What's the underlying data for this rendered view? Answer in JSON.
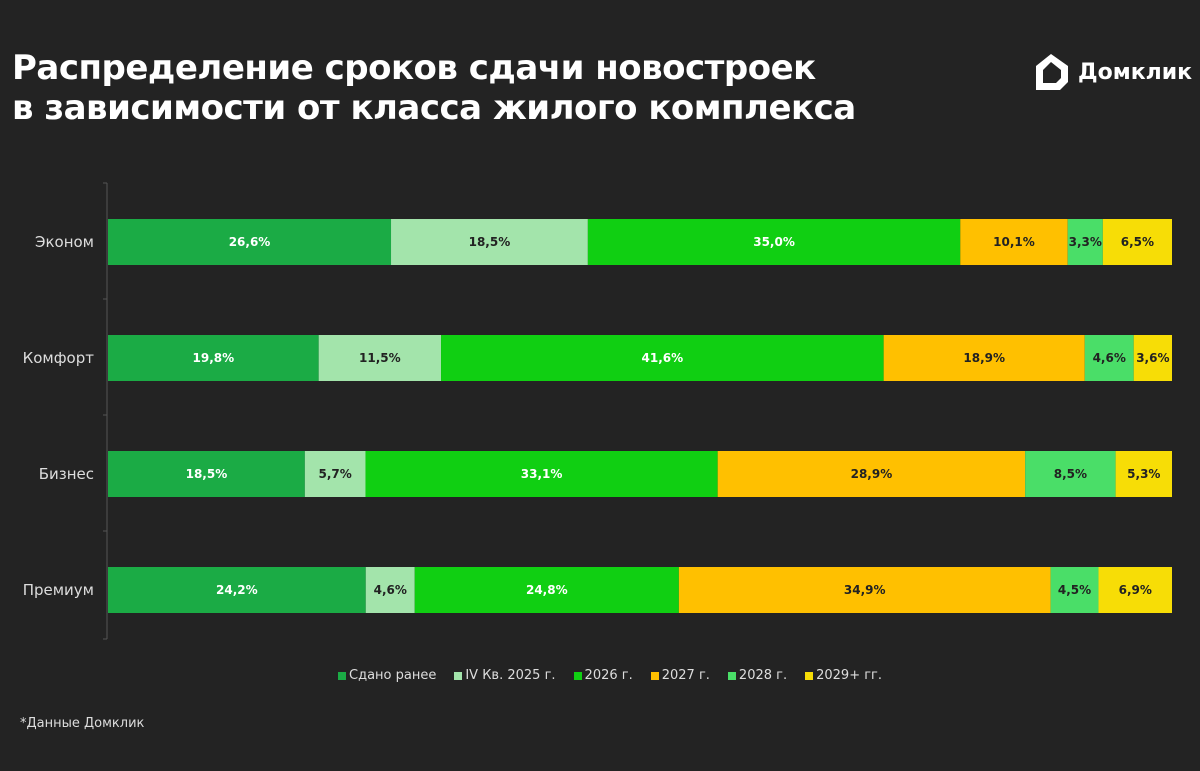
{
  "title_lines": [
    "Распределение сроков сдачи новостроек",
    "в зависимости от класса жилого комплекса"
  ],
  "logo_text": "Домклик",
  "footnote": "*Данные Домклик",
  "chart_data": {
    "type": "bar",
    "orientation": "horizontal",
    "stacked": true,
    "categories": [
      "Эконом",
      "Комфорт",
      "Бизнес",
      "Премиум"
    ],
    "series": [
      {
        "name": "Сдано ранее",
        "color": "#1bab45",
        "label_color": "#ffffff",
        "values": [
          26.6,
          19.8,
          18.5,
          24.2
        ]
      },
      {
        "name": "IV Кв. 2025 г.",
        "color": "#a3e4ab",
        "label_color": "#222222",
        "values": [
          18.5,
          11.5,
          5.7,
          4.6
        ]
      },
      {
        "name": "2026 г.",
        "color": "#10cf12",
        "label_color": "#ffffff",
        "values": [
          35.0,
          41.6,
          33.1,
          24.8
        ]
      },
      {
        "name": "2027 г.",
        "color": "#ffc000",
        "label_color": "#222222",
        "values": [
          10.1,
          18.9,
          28.9,
          34.9
        ]
      },
      {
        "name": "2028 г.",
        "color": "#4ade68",
        "label_color": "#222222",
        "values": [
          3.3,
          4.6,
          8.5,
          4.5
        ]
      },
      {
        "name": "2029+ гг.",
        "color": "#f7dd06",
        "label_color": "#222222",
        "values": [
          6.5,
          3.6,
          5.3,
          6.9
        ]
      }
    ],
    "legend": "bottom",
    "grid": false
  }
}
